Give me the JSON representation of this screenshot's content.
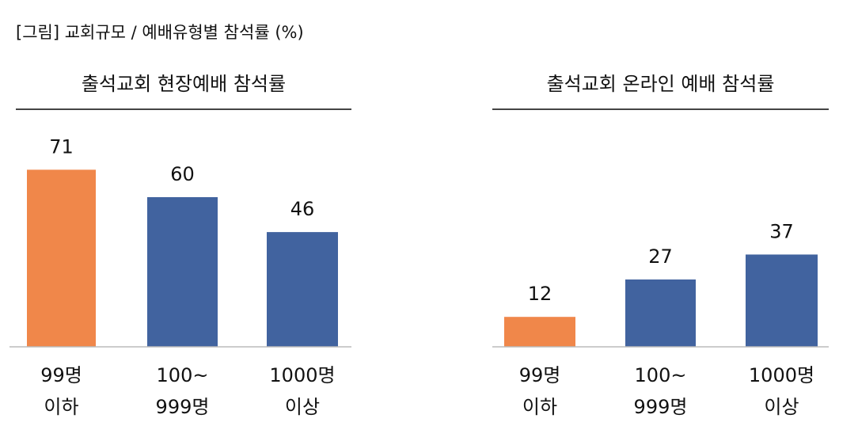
{
  "title": "[그림] 교회규모 / 예배유형별 참석률 (%)",
  "chart_data": [
    {
      "type": "bar",
      "title": "출석교회 현장예배 참석률",
      "categories": [
        [
          "99명",
          "이하"
        ],
        [
          "100~",
          "999명"
        ],
        [
          "1000명",
          "이상"
        ]
      ],
      "values": [
        71,
        60,
        46
      ],
      "colors": [
        "#f0874a",
        "#41639f",
        "#41639f"
      ]
    },
    {
      "type": "bar",
      "title": "출석교회 온라인 예배 참석률",
      "categories": [
        [
          "99명",
          "이하"
        ],
        [
          "100~",
          "999명"
        ],
        [
          "1000명",
          "이상"
        ]
      ],
      "values": [
        12,
        27,
        37
      ],
      "colors": [
        "#f0874a",
        "#41639f",
        "#41639f"
      ]
    }
  ]
}
